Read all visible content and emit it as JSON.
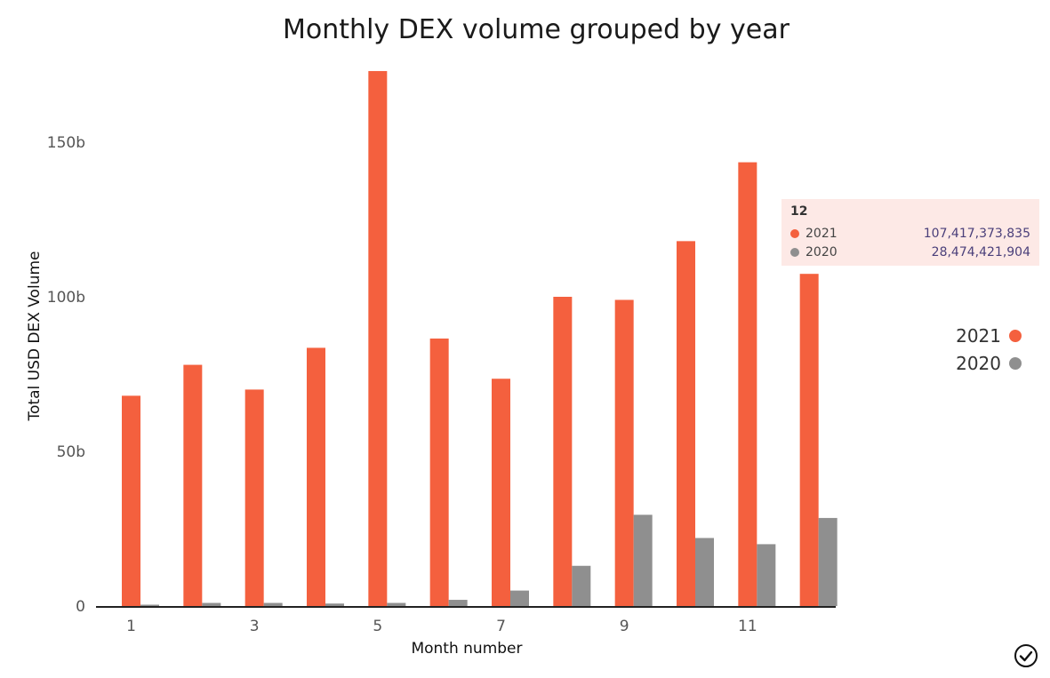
{
  "colors": {
    "series_2021": "#f4603e",
    "series_2020": "#8f8f8f"
  },
  "chart_data": {
    "type": "bar",
    "title": "Monthly DEX volume grouped by year",
    "xlabel": "Month number",
    "ylabel": "Total USD DEX Volume",
    "categories": [
      1,
      2,
      3,
      4,
      5,
      6,
      7,
      8,
      9,
      10,
      11,
      12
    ],
    "x_tick_labels": [
      "1",
      "3",
      "5",
      "7",
      "9",
      "11"
    ],
    "y_ticks": [
      0,
      50,
      100,
      150
    ],
    "y_tick_labels": [
      "0",
      "50b",
      "100b",
      "150b"
    ],
    "ylim": [
      0,
      180
    ],
    "y_unit": "billion USD",
    "series": [
      {
        "name": "2021",
        "values": [
          68,
          78,
          70,
          83.5,
          173,
          86.5,
          73.5,
          100,
          99,
          118,
          143.5,
          107.417
        ]
      },
      {
        "name": "2020",
        "values": [
          0.4,
          1.0,
          1.0,
          0.8,
          1.0,
          2.0,
          5.0,
          13.0,
          29.5,
          22.0,
          20.0,
          28.474
        ]
      }
    ],
    "legend_position": "right",
    "grid": false
  },
  "tooltip": {
    "title": "12",
    "rows": [
      {
        "name": "2021",
        "value": "107,417,373,835"
      },
      {
        "name": "2020",
        "value": "28,474,421,904"
      }
    ]
  },
  "icons": {
    "status": "check-circle-icon"
  }
}
